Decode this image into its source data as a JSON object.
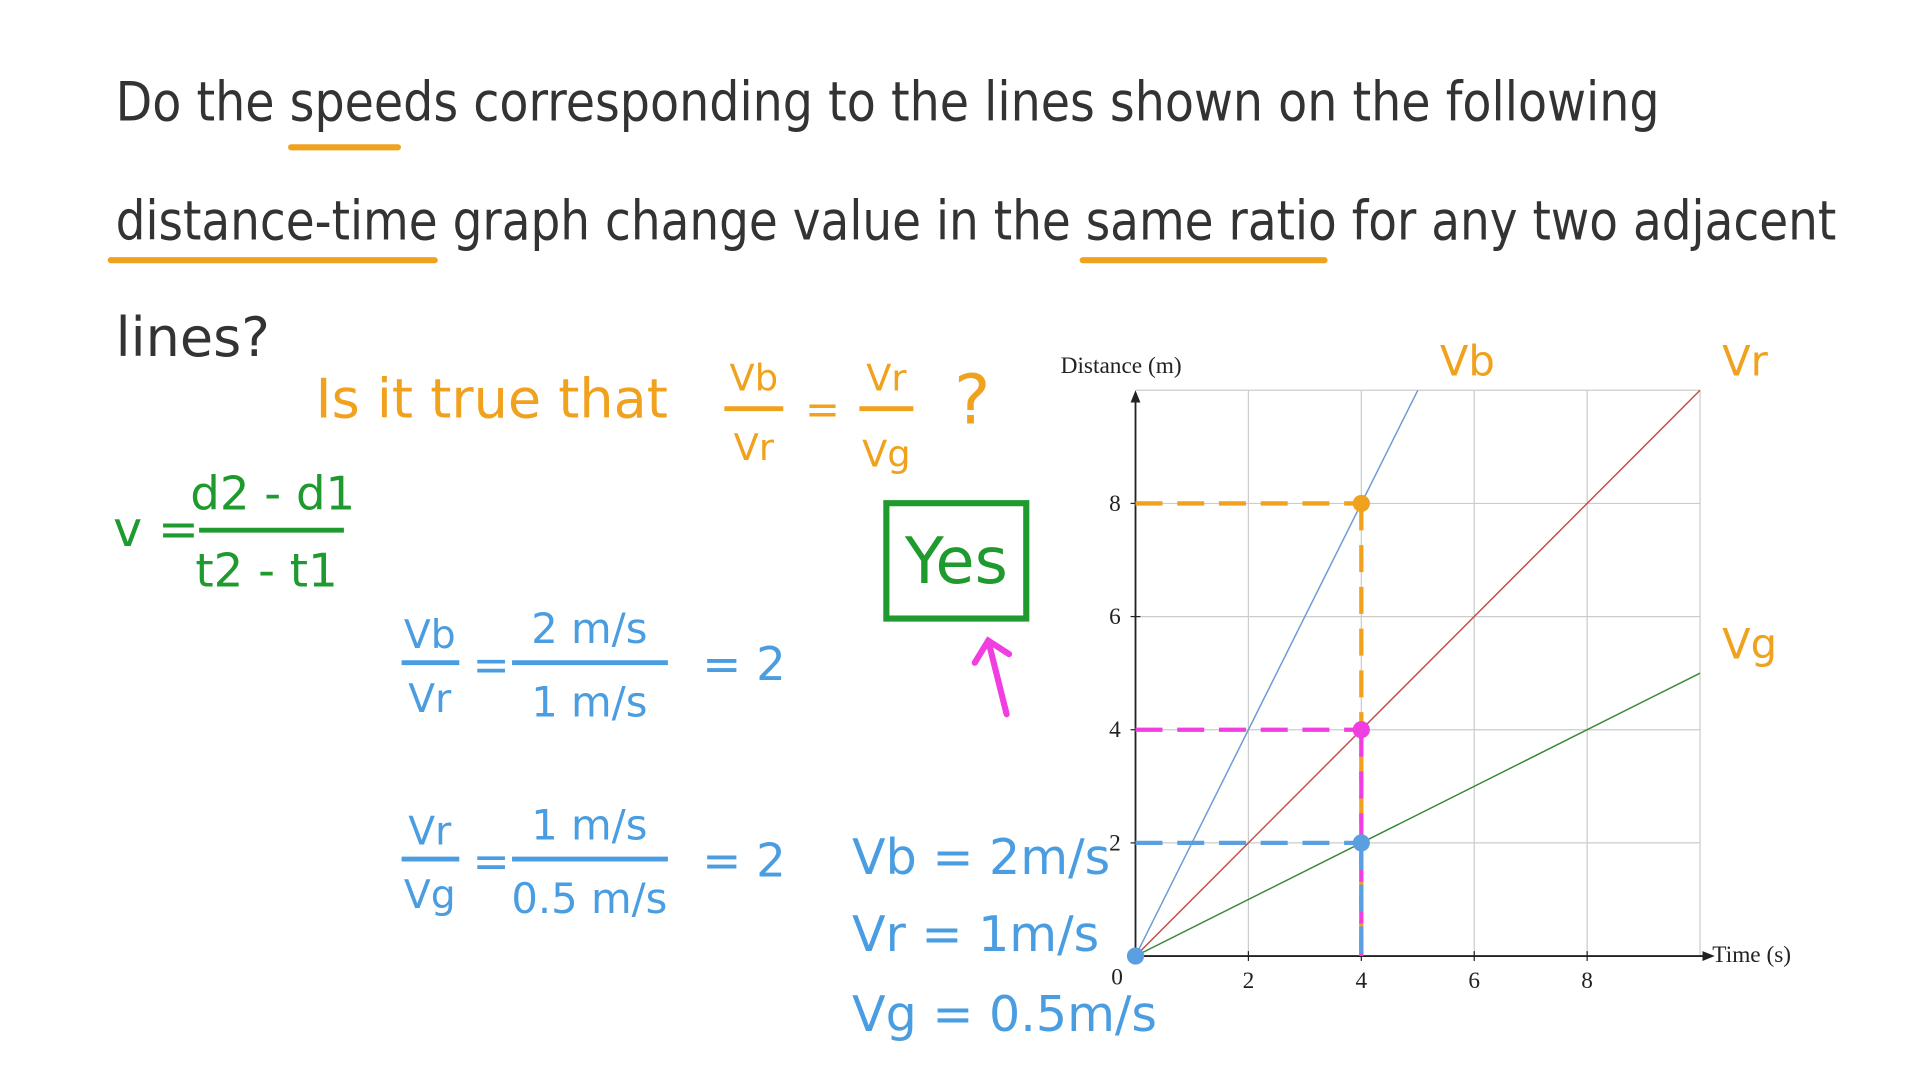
{
  "question": [
    "Do the speeds corresponding to the lines shown on the following",
    "distance-time graph change value in the same ratio for any two adjacent",
    "lines?"
  ],
  "prompt": {
    "text": "Is it true that",
    "lhs_num": "Vb",
    "lhs_den": "Vr",
    "eq": "=",
    "rhs_num": "Vr",
    "rhs_den": "Vg",
    "mark": "?"
  },
  "formula": {
    "lhs": "v =",
    "num": "d2 - d1",
    "den": "t2 - t1"
  },
  "answer": "Yes",
  "ratios": [
    {
      "lhs_num": "Vb",
      "lhs_den": "Vr",
      "eq": "=",
      "num": "2 m/s",
      "den": "1 m/s",
      "result": "= 2"
    },
    {
      "lhs_num": "Vr",
      "lhs_den": "Vg",
      "eq": "=",
      "num": "1 m/s",
      "den": "0.5 m/s",
      "result": "= 2"
    }
  ],
  "speeds": [
    "Vb = 2m/s",
    "Vr = 1m/s",
    "Vg = 0.5m/s"
  ],
  "chart_data": {
    "type": "line",
    "x_label": "Time (s)",
    "y_label": "Distance (m)",
    "origin_label": "0",
    "xlim": [
      0,
      10
    ],
    "ylim": [
      0,
      10
    ],
    "xticks": [
      2,
      4,
      6,
      8
    ],
    "yticks": [
      2,
      4,
      6,
      8
    ],
    "grid": true,
    "series": [
      {
        "name": "Vb",
        "color": "#6b9bd1",
        "x": [
          0,
          5
        ],
        "values": [
          0,
          10
        ]
      },
      {
        "name": "Vr",
        "color": "#c0504d",
        "x": [
          0,
          10
        ],
        "values": [
          0,
          10
        ]
      },
      {
        "name": "Vg",
        "color": "#3a8a3a",
        "x": [
          0,
          10
        ],
        "values": [
          0,
          5
        ]
      }
    ],
    "highlights": [
      {
        "x": 4,
        "y": 8,
        "color": "#f0a21e"
      },
      {
        "x": 4,
        "y": 4,
        "color": "#f03ee0"
      },
      {
        "x": 4,
        "y": 2,
        "color": "#5aa0e0"
      },
      {
        "x": 0,
        "y": 0,
        "color": "#5aa0e0"
      }
    ]
  }
}
